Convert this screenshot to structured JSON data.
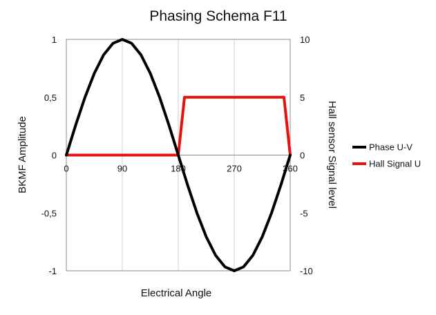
{
  "chart_data": {
    "type": "line",
    "title": "Phasing Schema F11",
    "xlabel": "Electrical Angle",
    "ylabel": "BKMF Amplitude",
    "y2label": "Hall sensor Signal level",
    "xlim": [
      0,
      360
    ],
    "ylim": [
      -1,
      1
    ],
    "y2lim": [
      -10,
      10
    ],
    "x_ticks": [
      "0",
      "90",
      "180",
      "270",
      "360"
    ],
    "x_tick_values": [
      0,
      90,
      180,
      270,
      360
    ],
    "y_ticks": [
      "1",
      "0,5",
      "0",
      "-0,5",
      "-1"
    ],
    "y_tick_values": [
      1,
      0.5,
      0,
      -0.5,
      -1
    ],
    "y2_ticks": [
      "10",
      "5",
      "0",
      "-5",
      "-10"
    ],
    "y2_tick_values": [
      10,
      5,
      0,
      -5,
      -10
    ],
    "grid": "vertical",
    "legend_position": "right",
    "series": [
      {
        "name": "Phase U-V",
        "axis": "left",
        "color": "#000000",
        "x": [
          0,
          15,
          30,
          45,
          60,
          75,
          90,
          105,
          120,
          135,
          150,
          165,
          180,
          195,
          210,
          225,
          240,
          255,
          270,
          285,
          300,
          315,
          330,
          345,
          360
        ],
        "values": [
          0,
          0.259,
          0.5,
          0.707,
          0.866,
          0.966,
          1,
          0.966,
          0.866,
          0.707,
          0.5,
          0.259,
          0,
          -0.259,
          -0.5,
          -0.707,
          -0.866,
          -0.966,
          -1,
          -0.966,
          -0.866,
          -0.707,
          -0.5,
          -0.259,
          0
        ]
      },
      {
        "name": "Hall Signal U",
        "axis": "right",
        "color": "#e8110f",
        "x": [
          0,
          180,
          190,
          350,
          360
        ],
        "values": [
          0,
          0,
          5,
          5,
          0
        ]
      }
    ]
  }
}
